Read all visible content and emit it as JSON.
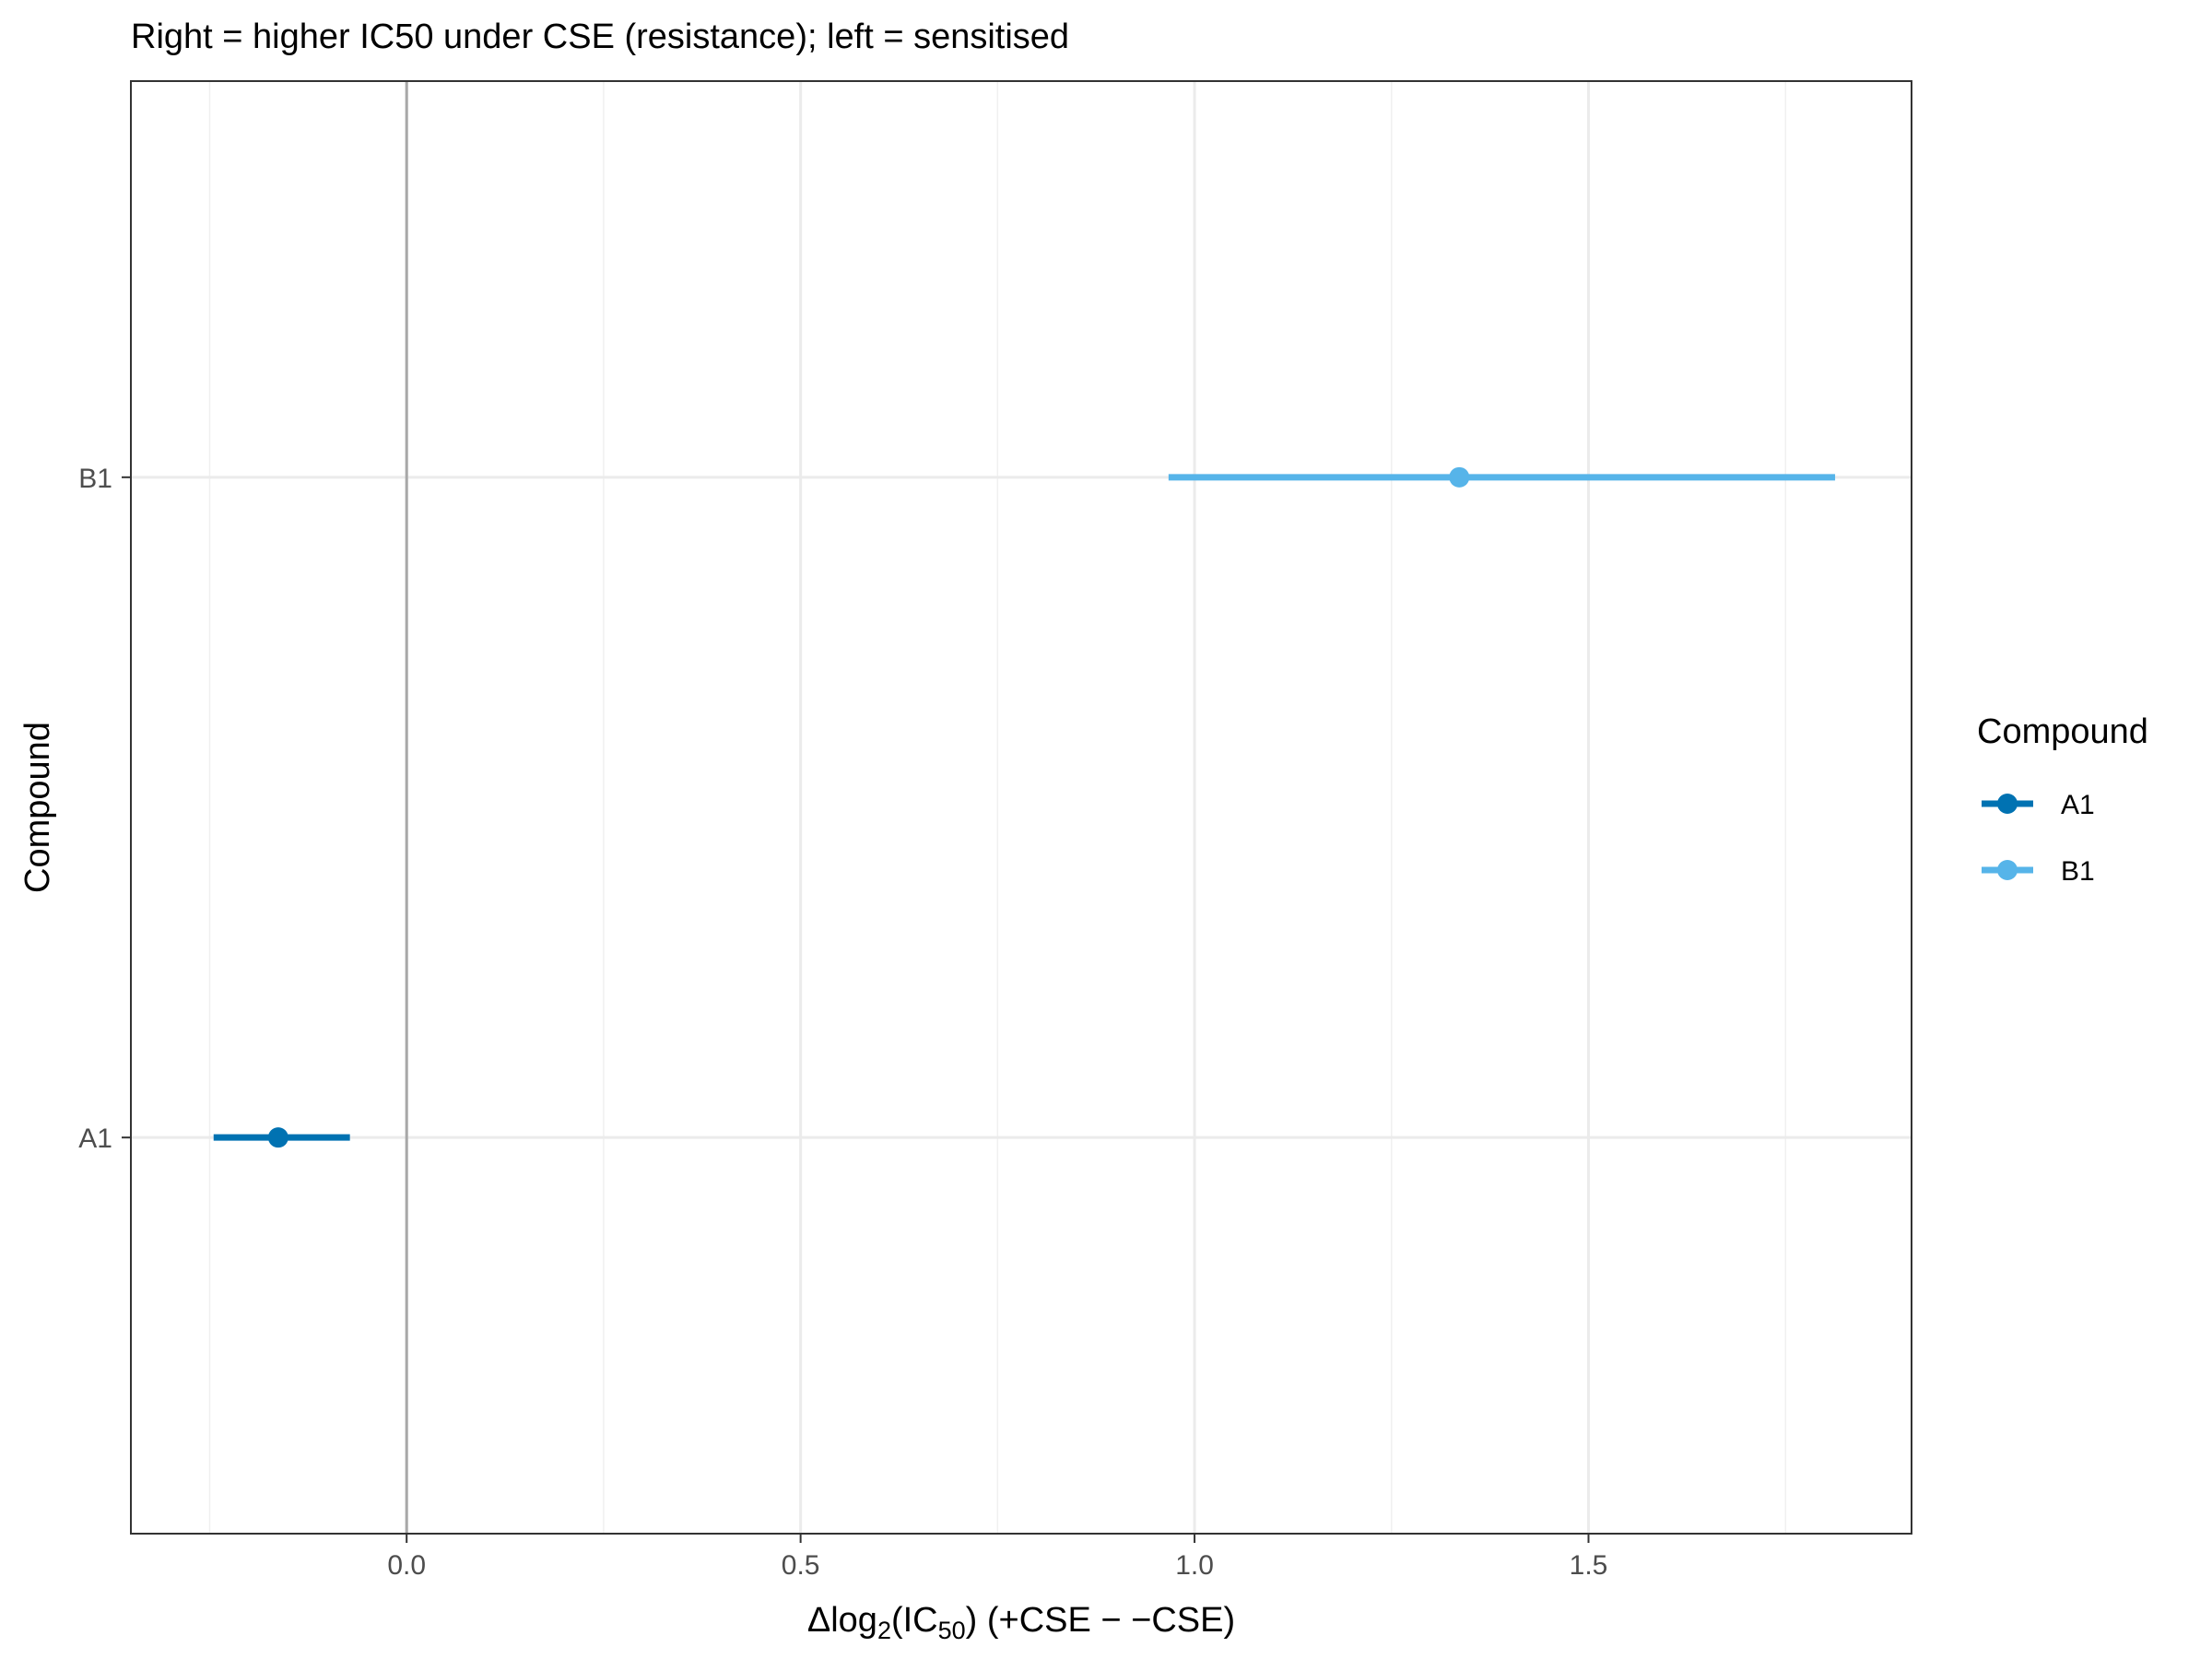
{
  "chart_data": {
    "type": "forest",
    "subtitle": "Right = higher IC50 under CSE (resistance); left = sensitised",
    "xlabel": {
      "prefix": "Δlog",
      "sub1": "2",
      "mid": "(IC",
      "sub2": "50",
      "suffix": ") (+CSE − −CSE)"
    },
    "ylabel": "Compound",
    "xlim": [
      -0.35,
      1.91
    ],
    "x_ticks": [
      0.0,
      0.5,
      1.0,
      1.5
    ],
    "x_tick_labels": [
      "0.0",
      "0.5",
      "1.0",
      "1.5"
    ],
    "x_minor_ticks": [
      -0.25,
      0.25,
      0.75,
      1.25,
      1.75
    ],
    "reference_line_x": 0,
    "categories": [
      "A1",
      "B1"
    ],
    "series": [
      {
        "name": "A1",
        "estimate": -0.163,
        "lower": -0.245,
        "upper": -0.072,
        "color": "#0072B2"
      },
      {
        "name": "B1",
        "estimate": 1.336,
        "lower": 0.967,
        "upper": 1.813,
        "color": "#56B4E9"
      }
    ],
    "legend": {
      "title": "Compound",
      "position": "right",
      "items": [
        "A1",
        "B1"
      ]
    },
    "grid": true
  }
}
